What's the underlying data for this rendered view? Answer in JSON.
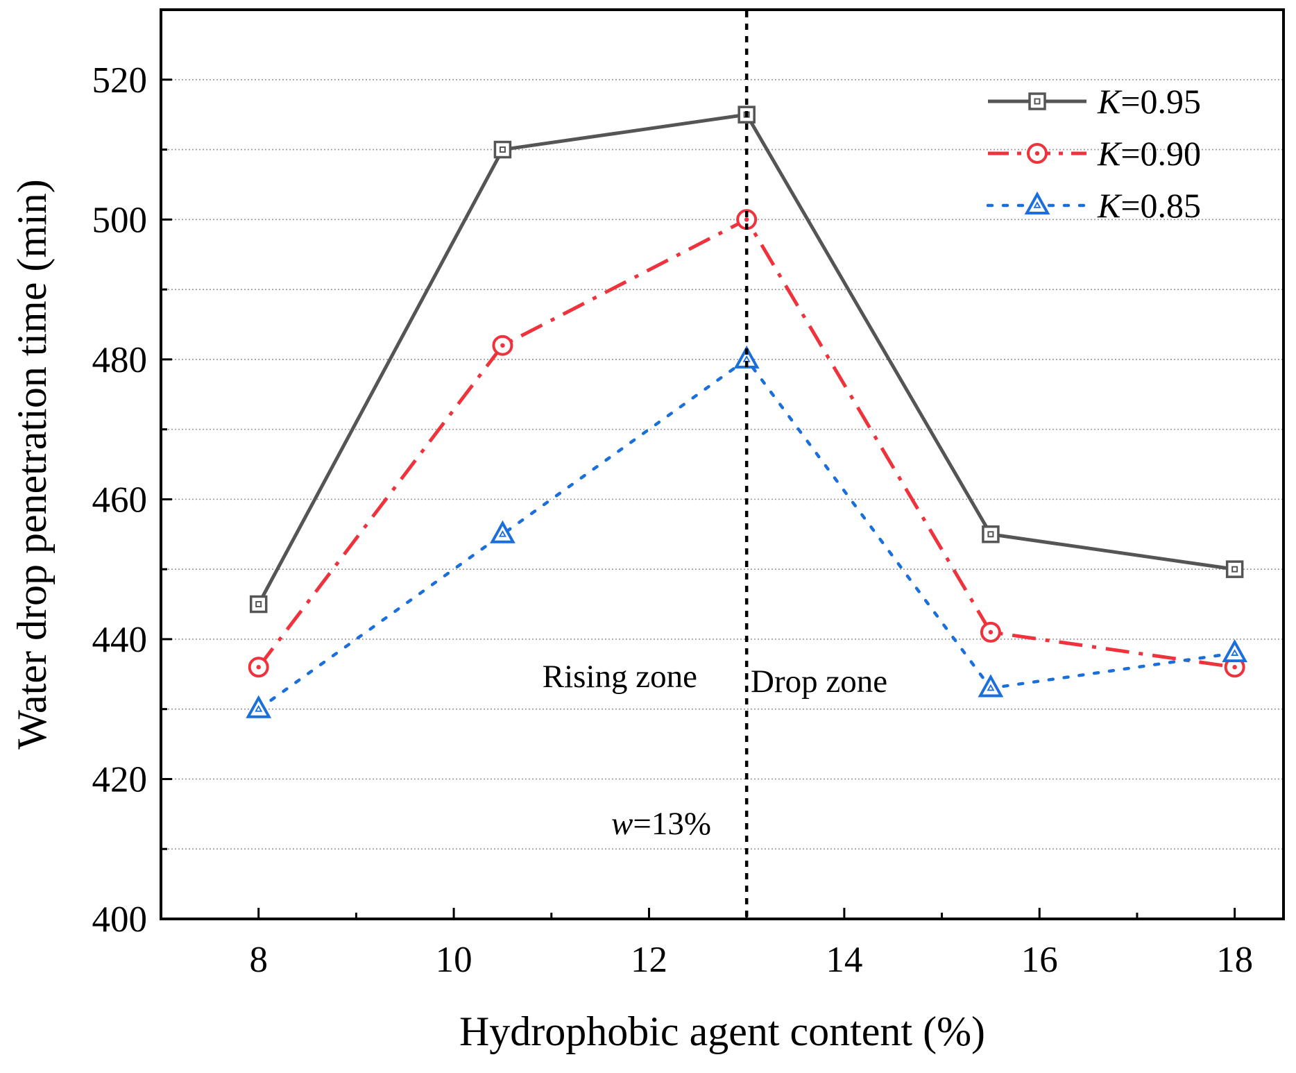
{
  "chart_data": {
    "type": "line",
    "title": "",
    "xlabel": "Hydrophobic agent content (%)",
    "ylabel": "Water drop penetration time (min)",
    "xlim": [
      7,
      18.5
    ],
    "ylim": [
      400,
      530
    ],
    "x_ticks": [
      8,
      10,
      12,
      14,
      16,
      18
    ],
    "y_ticks": [
      400,
      420,
      440,
      460,
      480,
      500,
      520
    ],
    "grid": "horizontal dotted",
    "legend_position": "top-right",
    "x": [
      8,
      10.5,
      13,
      15.5,
      18
    ],
    "series": [
      {
        "name_italic": "K",
        "name_rest": "=0.95",
        "color": "#555555",
        "marker": "square",
        "line_style": "solid",
        "values": [
          445,
          510,
          515,
          455,
          450
        ]
      },
      {
        "name_italic": "K",
        "name_rest": "=0.90",
        "color": "#f0323c",
        "marker": "circle",
        "line_style": "dash-dot",
        "values": [
          436,
          482,
          500,
          441,
          436
        ]
      },
      {
        "name_italic": "K",
        "name_rest": "=0.85",
        "color": "#1a6fdc",
        "marker": "triangle",
        "line_style": "dotted",
        "values": [
          430,
          455,
          480,
          433,
          438
        ]
      }
    ],
    "annotations": {
      "reference_x": 13,
      "rising_zone": "Rising zone",
      "drop_zone": "Drop zone",
      "w_italic": "w",
      "w_rest": "=13%"
    }
  }
}
